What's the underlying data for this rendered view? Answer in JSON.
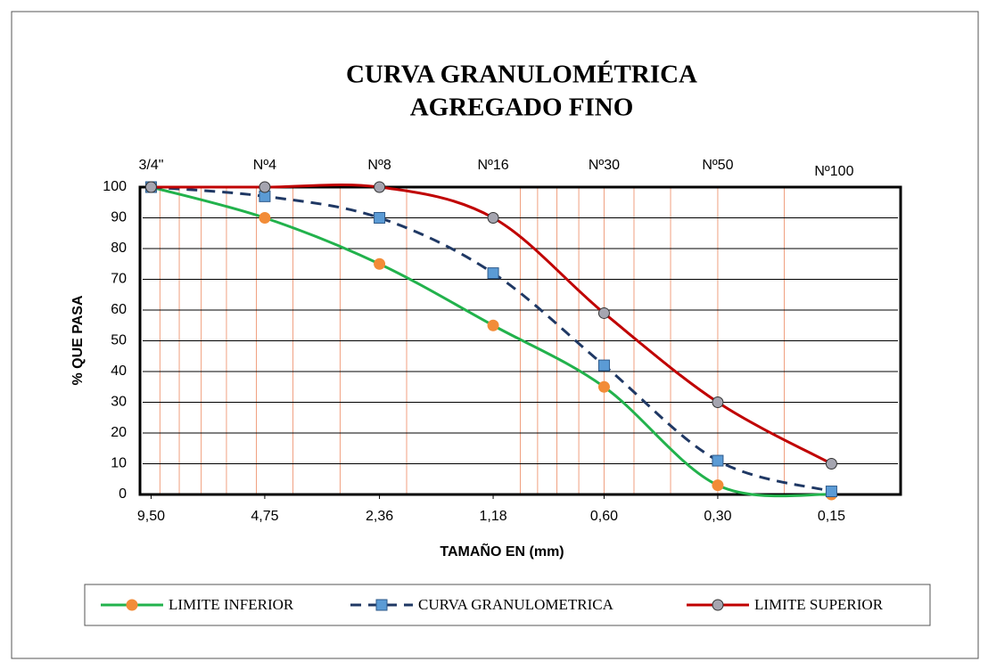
{
  "chart_data": {
    "type": "line",
    "title": [
      "CURVA GRANULOMÉTRICA",
      "AGREGADO FINO"
    ],
    "x_label": "TAMAÑO EN (mm)",
    "y_label": "% QUE PASA",
    "x": [
      9.5,
      4.75,
      2.36,
      1.18,
      0.6,
      0.3,
      0.15
    ],
    "sieves": [
      "3/4\"",
      "Nº4",
      "Nº8",
      "Nº16",
      "Nº30",
      "Nº50",
      "Nº100"
    ],
    "xscale": "log",
    "xreversed": true,
    "xlim": [
      10,
      0.1
    ],
    "xticks": [
      {
        "value": 9.5,
        "label": "9,50"
      },
      {
        "value": 4.75,
        "label": "4,75"
      },
      {
        "value": 2.36,
        "label": "2,36"
      },
      {
        "value": 1.18,
        "label": "1,18"
      },
      {
        "value": 0.6,
        "label": "0,60"
      },
      {
        "value": 0.3,
        "label": "0,30"
      },
      {
        "value": 0.15,
        "label": "0,15"
      }
    ],
    "xminor": [
      9,
      8,
      7,
      6,
      5,
      4,
      3,
      2,
      1,
      0.9,
      0.8,
      0.7,
      0.6,
      0.5,
      0.4,
      0.3,
      0.2
    ],
    "ylim": [
      0,
      100
    ],
    "yticks": [
      0,
      10,
      20,
      30,
      40,
      50,
      60,
      70,
      80,
      90,
      100
    ],
    "grid": true,
    "legend": "bottom",
    "series": [
      {
        "name": "LIMITE INFERIOR",
        "color": "#22b24c",
        "marker": "circle",
        "marker_color": "#f28c38",
        "dash": false,
        "values": [
          100,
          90,
          75,
          55,
          35,
          3,
          0
        ]
      },
      {
        "name": "CURVA GRANULOMETRICA",
        "color": "#1f3864",
        "marker": "square",
        "marker_color": "#5b9bd5",
        "dash": true,
        "values": [
          100,
          97,
          90,
          72,
          42,
          11,
          1
        ]
      },
      {
        "name": "LIMITE SUPERIOR",
        "color": "#c00000",
        "marker": "circle",
        "marker_color": "#a5a5b0",
        "dash": false,
        "values": [
          100,
          100,
          100,
          90,
          59,
          30,
          10
        ]
      }
    ]
  }
}
